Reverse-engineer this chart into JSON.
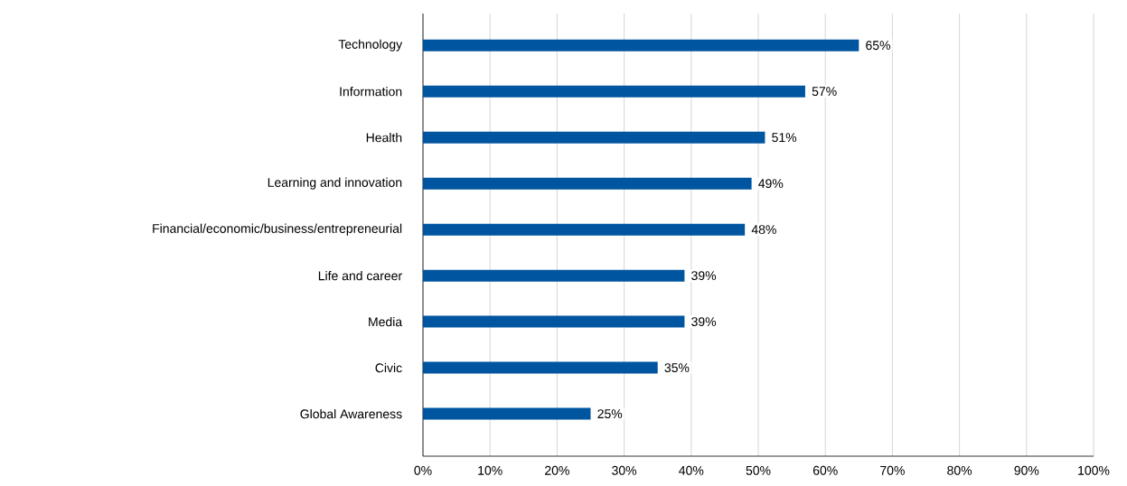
{
  "chart_data": {
    "type": "bar",
    "orientation": "horizontal",
    "categories": [
      "Technology",
      "Information",
      "Health",
      "Learning and innovation",
      "Financial/economic/business/entrepreneurial",
      "Life and career",
      "Media",
      "Civic",
      "Global Awareness"
    ],
    "values": [
      65,
      57,
      51,
      49,
      48,
      39,
      39,
      35,
      25
    ],
    "value_labels": [
      "65%",
      "57%",
      "51%",
      "49%",
      "48%",
      "39%",
      "39%",
      "35%",
      "25%"
    ],
    "color": "#0055a0",
    "xlim": [
      0,
      100
    ],
    "xticks": [
      {
        "value": 0,
        "label": "0%"
      },
      {
        "value": 10,
        "label": "10%"
      },
      {
        "value": 20,
        "label": "20%"
      },
      {
        "value": 30,
        "label": "30%"
      },
      {
        "value": 40,
        "label": "40%"
      },
      {
        "value": 50,
        "label": "50%"
      },
      {
        "value": 60,
        "label": "60%"
      },
      {
        "value": 70,
        "label": "70%"
      },
      {
        "value": 80,
        "label": "80%"
      },
      {
        "value": 90,
        "label": "90%"
      },
      {
        "value": 100,
        "label": "100%"
      }
    ],
    "grid": "x"
  }
}
